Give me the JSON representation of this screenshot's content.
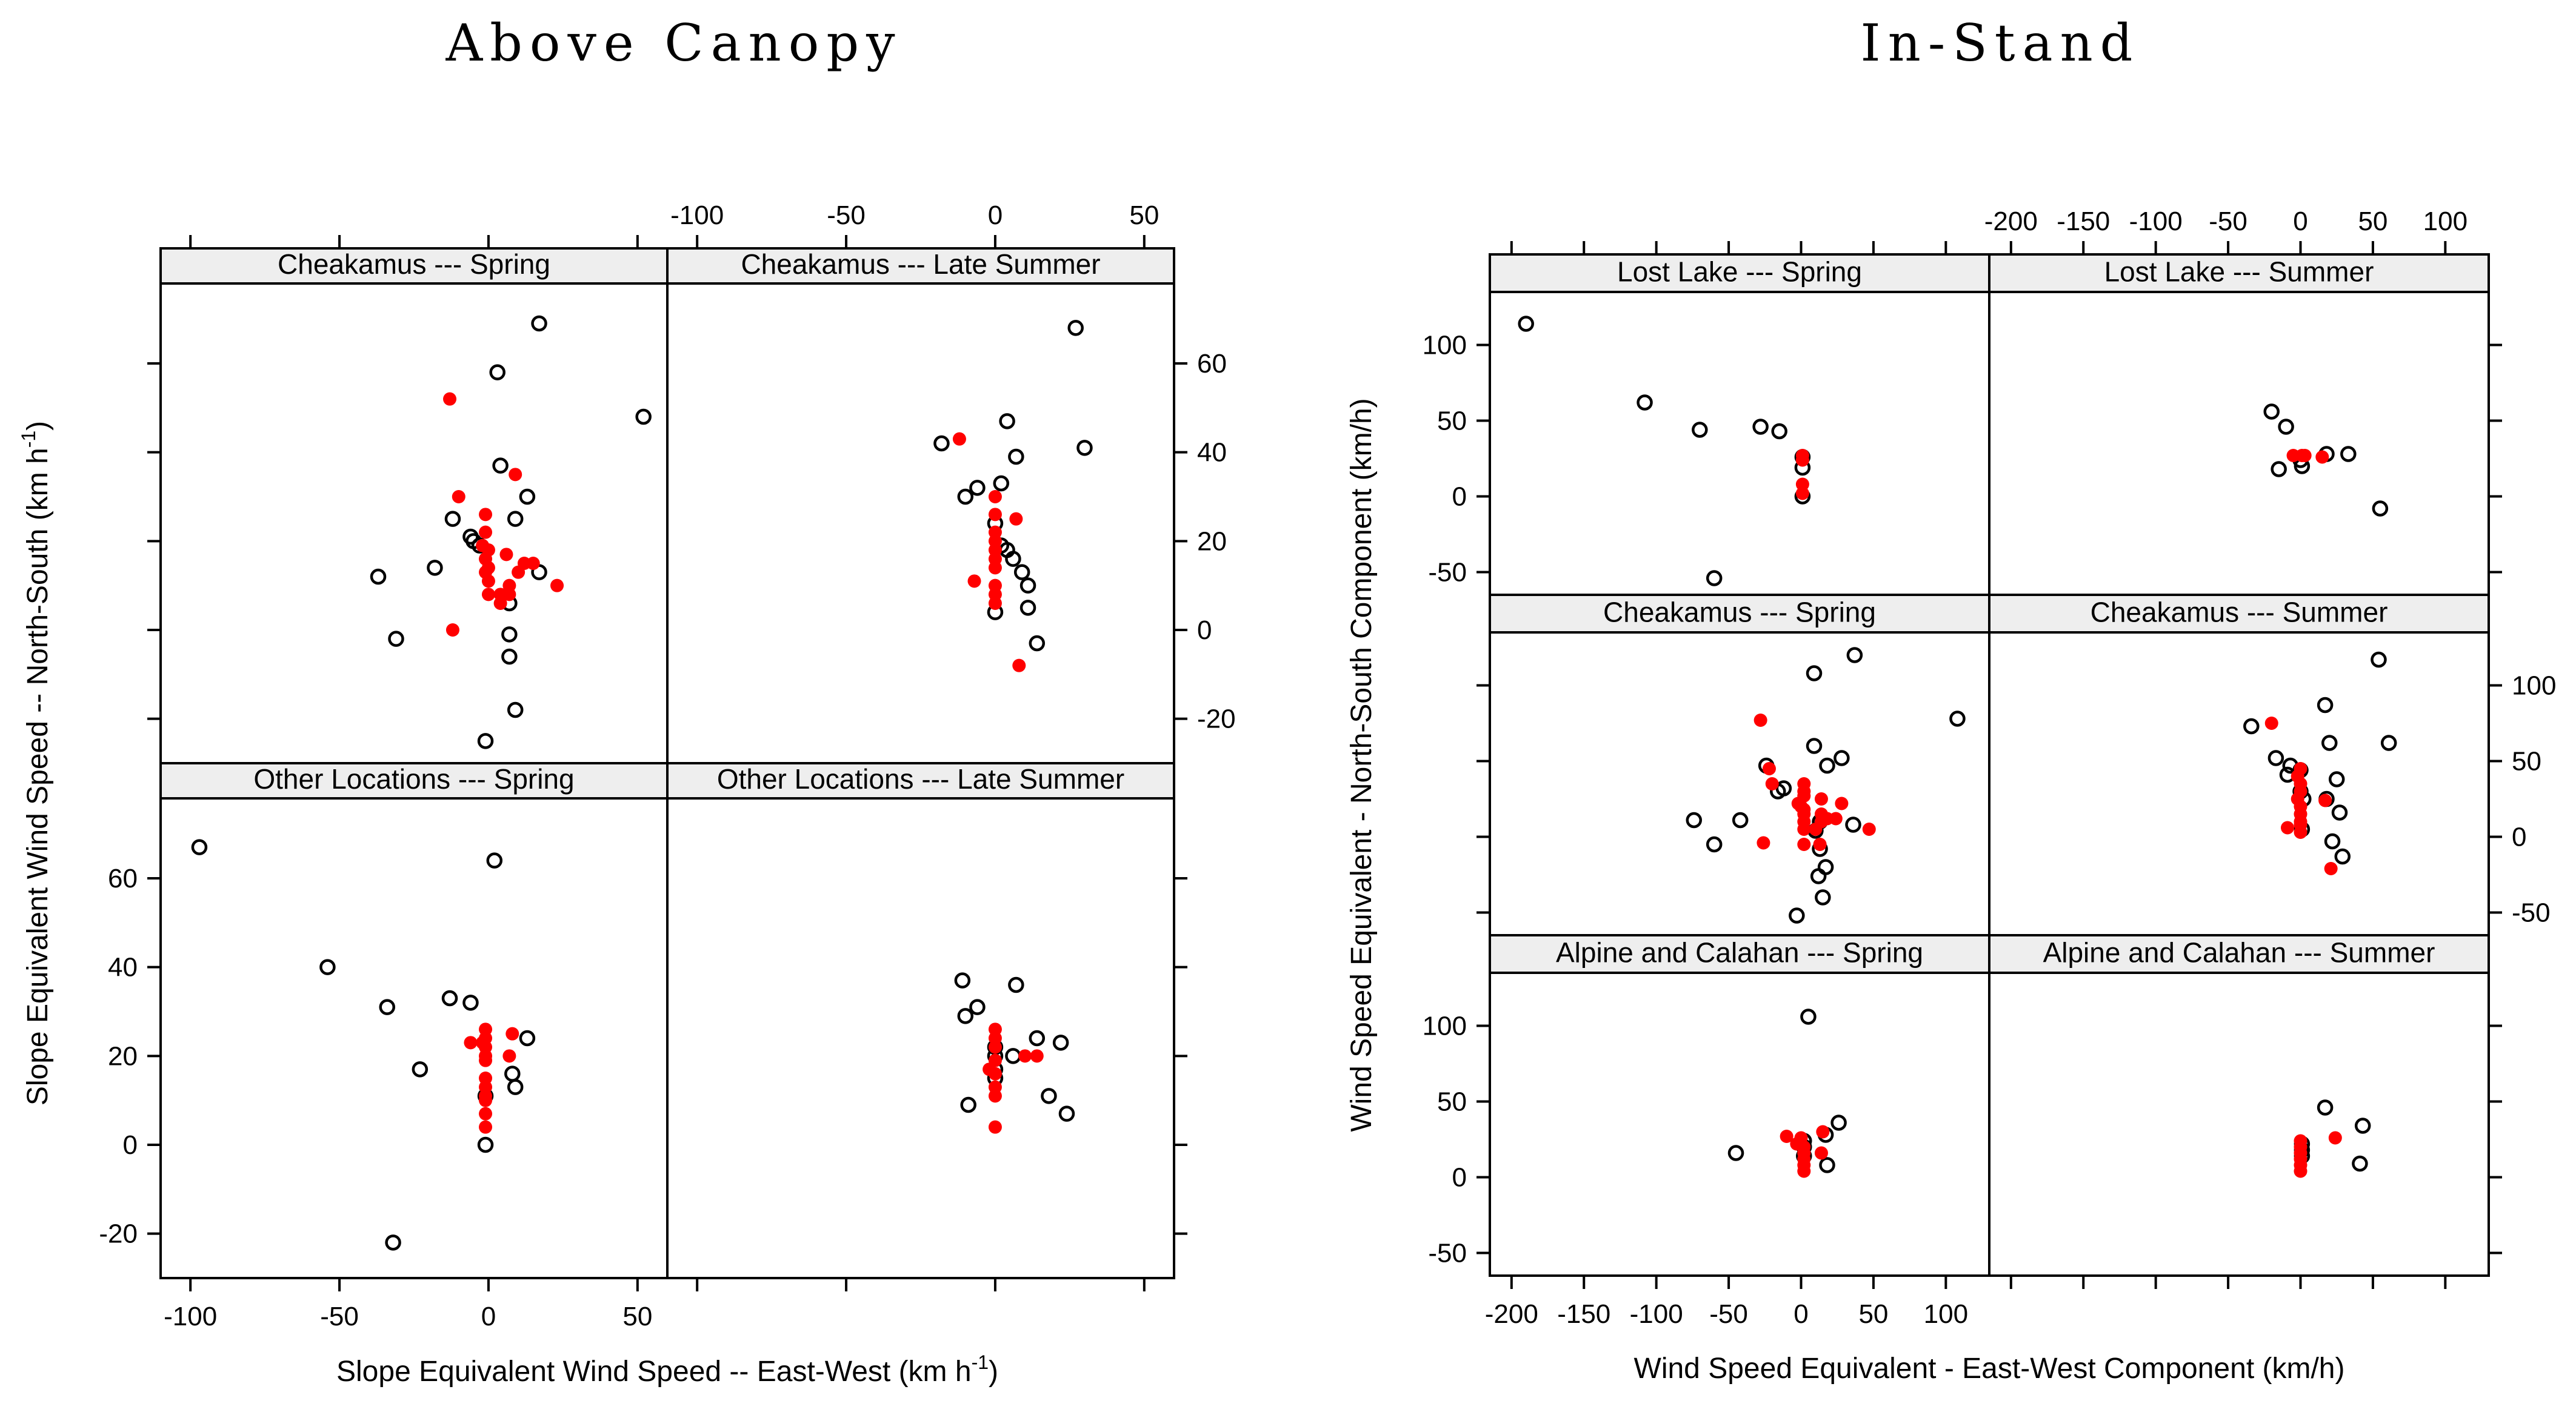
{
  "colors": {
    "black_point": "#000000",
    "red_point": "#ff0000",
    "strip_bg": "#eeeeee",
    "frame": "#000000"
  },
  "chart_data": [
    {
      "type": "scatter",
      "group_title": "Above Canopy",
      "xlabel": "Slope Equivalent Wind Speed -- East-West",
      "xlabel_unit": "(km  h",
      "xlabel_sup": "-1",
      "xlabel_close": ")",
      "ylabel": "Slope Equivalent Wind Speed -- North-South",
      "ylabel_unit": "(km  h",
      "ylabel_sup": "-1",
      "ylabel_close": ")",
      "xlim": [
        -110,
        60
      ],
      "ylim": [
        -30,
        78
      ],
      "xticks": [
        -100,
        -50,
        0,
        50
      ],
      "yticks": [
        -20,
        0,
        20,
        40,
        60
      ],
      "xtick_labels": [
        "-100",
        "-50",
        "0",
        "50"
      ],
      "ytick_labels": [
        "-20",
        "0",
        "20",
        "40",
        "60"
      ],
      "grid": false,
      "panels": [
        {
          "label": "Cheakamus --- Spring",
          "black": [
            [
              17,
              69
            ],
            [
              3,
              58
            ],
            [
              52,
              48
            ],
            [
              -18,
              14
            ],
            [
              4,
              37
            ],
            [
              13,
              30
            ],
            [
              -12,
              25
            ],
            [
              9,
              25
            ],
            [
              -6,
              21
            ],
            [
              -5,
              20
            ],
            [
              -3,
              19
            ],
            [
              -37,
              12
            ],
            [
              -31,
              -2
            ],
            [
              7,
              6
            ],
            [
              17,
              13
            ],
            [
              7,
              -1
            ],
            [
              7,
              -6
            ],
            [
              9,
              -18
            ],
            [
              -1,
              -25
            ]
          ],
          "red": [
            [
              -13,
              52
            ],
            [
              -10,
              30
            ],
            [
              9,
              35
            ],
            [
              -1,
              26
            ],
            [
              -1,
              22
            ],
            [
              -2,
              19
            ],
            [
              0,
              18
            ],
            [
              -1,
              16
            ],
            [
              6,
              17
            ],
            [
              12,
              15
            ],
            [
              15,
              15
            ],
            [
              0,
              14
            ],
            [
              -1,
              13
            ],
            [
              10,
              13
            ],
            [
              0,
              11
            ],
            [
              7,
              10
            ],
            [
              23,
              10
            ],
            [
              0,
              8
            ],
            [
              4,
              8
            ],
            [
              7,
              8
            ],
            [
              4,
              6
            ],
            [
              -12,
              0
            ]
          ]
        },
        {
          "label": "Cheakamus --- Late Summer",
          "black": [
            [
              27,
              68
            ],
            [
              4,
              47
            ],
            [
              -18,
              42
            ],
            [
              30,
              41
            ],
            [
              7,
              39
            ],
            [
              2,
              33
            ],
            [
              -6,
              32
            ],
            [
              -10,
              30
            ],
            [
              0,
              24
            ],
            [
              2,
              19
            ],
            [
              4,
              18
            ],
            [
              6,
              16
            ],
            [
              9,
              13
            ],
            [
              11,
              10
            ],
            [
              11,
              5
            ],
            [
              0,
              4
            ],
            [
              14,
              -3
            ]
          ],
          "red": [
            [
              -12,
              43
            ],
            [
              0,
              30
            ],
            [
              0,
              26
            ],
            [
              7,
              25
            ],
            [
              0,
              22
            ],
            [
              0,
              20
            ],
            [
              0,
              18
            ],
            [
              0,
              16
            ],
            [
              0,
              14
            ],
            [
              -7,
              11
            ],
            [
              0,
              10
            ],
            [
              0,
              8
            ],
            [
              0,
              6
            ],
            [
              8,
              -8
            ]
          ]
        },
        {
          "label": "Other Locations --- Spring",
          "black": [
            [
              -97,
              67
            ],
            [
              2,
              64
            ],
            [
              -54,
              40
            ],
            [
              -34,
              31
            ],
            [
              -13,
              33
            ],
            [
              -6,
              32
            ],
            [
              13,
              24
            ],
            [
              -23,
              17
            ],
            [
              8,
              16
            ],
            [
              9,
              13
            ],
            [
              -1,
              11
            ],
            [
              -1,
              0
            ],
            [
              -32,
              -22
            ]
          ],
          "red": [
            [
              -1,
              26
            ],
            [
              -1,
              24
            ],
            [
              8,
              25
            ],
            [
              -2,
              23
            ],
            [
              -6,
              23
            ],
            [
              -1,
              22
            ],
            [
              -1,
              20
            ],
            [
              7,
              20
            ],
            [
              -1,
              19
            ],
            [
              -1,
              15
            ],
            [
              -1,
              13
            ],
            [
              -1,
              11
            ],
            [
              -1,
              10
            ],
            [
              -1,
              7
            ],
            [
              -1,
              4
            ]
          ]
        },
        {
          "label": "Other Locations --- Late Summer",
          "black": [
            [
              -11,
              37
            ],
            [
              7,
              36
            ],
            [
              -6,
              31
            ],
            [
              -10,
              29
            ],
            [
              14,
              24
            ],
            [
              22,
              23
            ],
            [
              0,
              22
            ],
            [
              0,
              20
            ],
            [
              6,
              20
            ],
            [
              0,
              17
            ],
            [
              0,
              15
            ],
            [
              18,
              11
            ],
            [
              24,
              7
            ],
            [
              -9,
              9
            ]
          ],
          "red": [
            [
              0,
              26
            ],
            [
              0,
              24
            ],
            [
              0,
              22
            ],
            [
              10,
              20
            ],
            [
              14,
              20
            ],
            [
              0,
              19
            ],
            [
              -2,
              17
            ],
            [
              0,
              16
            ],
            [
              0,
              13
            ],
            [
              0,
              11
            ],
            [
              0,
              4
            ]
          ]
        }
      ]
    },
    {
      "type": "scatter",
      "group_title": "In-Stand",
      "xlabel": "Wind Speed Equivalent - East-West Component (km/h)",
      "ylabel": "Wind Speed Equivalent - North-South Component (km/h)",
      "xlim": [
        -215,
        130
      ],
      "ylim": [
        -65,
        135
      ],
      "xticks": [
        -200,
        -150,
        -100,
        -50,
        0,
        50,
        100
      ],
      "yticks": [
        -50,
        0,
        50,
        100
      ],
      "xtick_labels": [
        "-200",
        "-150",
        "-100",
        "-50",
        "0",
        "50",
        "100"
      ],
      "ytick_labels": [
        "-50",
        "0",
        "50",
        "100"
      ],
      "grid": false,
      "panels": [
        {
          "label": "Lost Lake --- Spring",
          "black": [
            [
              -190,
              114
            ],
            [
              -108,
              62
            ],
            [
              -70,
              44
            ],
            [
              -28,
              46
            ],
            [
              -15,
              43
            ],
            [
              1,
              26
            ],
            [
              1,
              19
            ],
            [
              1,
              0
            ],
            [
              -60,
              -54
            ]
          ],
          "red": [
            [
              1,
              27
            ],
            [
              1,
              24
            ],
            [
              1,
              8
            ],
            [
              1,
              2
            ]
          ]
        },
        {
          "label": "Lost Lake --- Summer",
          "black": [
            [
              -20,
              56
            ],
            [
              -10,
              46
            ],
            [
              -15,
              18
            ],
            [
              1,
              20
            ],
            [
              0,
              24
            ],
            [
              18,
              28
            ],
            [
              33,
              28
            ],
            [
              55,
              -8
            ]
          ],
          "red": [
            [
              -5,
              27
            ],
            [
              3,
              27
            ],
            [
              15,
              26
            ],
            [
              1,
              27
            ]
          ]
        },
        {
          "label": "Cheakamus --- Spring",
          "black": [
            [
              37,
              120
            ],
            [
              9,
              108
            ],
            [
              108,
              78
            ],
            [
              9,
              60
            ],
            [
              28,
              52
            ],
            [
              18,
              47
            ],
            [
              -24,
              47
            ],
            [
              -12,
              32
            ],
            [
              -16,
              30
            ],
            [
              -74,
              11
            ],
            [
              -42,
              11
            ],
            [
              -60,
              -5
            ],
            [
              36,
              8
            ],
            [
              13,
              10
            ],
            [
              10,
              4
            ],
            [
              13,
              -8
            ],
            [
              17,
              -20
            ],
            [
              12,
              -26
            ],
            [
              15,
              -40
            ],
            [
              -3,
              -52
            ]
          ],
          "red": [
            [
              -28,
              77
            ],
            [
              -22,
              45
            ],
            [
              -20,
              35
            ],
            [
              2,
              35
            ],
            [
              2,
              30
            ],
            [
              2,
              27
            ],
            [
              -2,
              22
            ],
            [
              14,
              25
            ],
            [
              28,
              22
            ],
            [
              0,
              20
            ],
            [
              2,
              18
            ],
            [
              2,
              15
            ],
            [
              14,
              15
            ],
            [
              18,
              12
            ],
            [
              24,
              12
            ],
            [
              2,
              10
            ],
            [
              14,
              10
            ],
            [
              47,
              5
            ],
            [
              2,
              5
            ],
            [
              10,
              5
            ],
            [
              -26,
              -4
            ],
            [
              2,
              -5
            ],
            [
              13,
              -5
            ]
          ]
        },
        {
          "label": "Cheakamus --- Summer",
          "black": [
            [
              54,
              117
            ],
            [
              17,
              87
            ],
            [
              -34,
              73
            ],
            [
              20,
              62
            ],
            [
              61,
              62
            ],
            [
              -17,
              52
            ],
            [
              0,
              44
            ],
            [
              -7,
              47
            ],
            [
              -9,
              41
            ],
            [
              25,
              38
            ],
            [
              0,
              30
            ],
            [
              2,
              25
            ],
            [
              18,
              25
            ],
            [
              27,
              16
            ],
            [
              1,
              5
            ],
            [
              22,
              -3
            ],
            [
              29,
              -13
            ]
          ],
          "red": [
            [
              -20,
              75
            ],
            [
              0,
              45
            ],
            [
              -2,
              40
            ],
            [
              0,
              35
            ],
            [
              0,
              30
            ],
            [
              -2,
              25
            ],
            [
              17,
              24
            ],
            [
              0,
              20
            ],
            [
              0,
              15
            ],
            [
              0,
              10
            ],
            [
              0,
              8
            ],
            [
              -9,
              6
            ],
            [
              0,
              3
            ],
            [
              21,
              -21
            ]
          ]
        },
        {
          "label": "Alpine and Calahan --- Spring",
          "black": [
            [
              5,
              106
            ],
            [
              26,
              36
            ],
            [
              17,
              28
            ],
            [
              -45,
              16
            ],
            [
              18,
              8
            ],
            [
              2,
              24
            ],
            [
              2,
              20
            ],
            [
              2,
              14
            ]
          ],
          "red": [
            [
              -10,
              27
            ],
            [
              -3,
              22
            ],
            [
              15,
              30
            ],
            [
              0,
              26
            ],
            [
              2,
              20
            ],
            [
              2,
              16
            ],
            [
              2,
              12
            ],
            [
              2,
              8
            ],
            [
              2,
              4
            ],
            [
              14,
              16
            ]
          ]
        },
        {
          "label": "Alpine and Calahan --- Summer",
          "black": [
            [
              17,
              46
            ],
            [
              43,
              34
            ],
            [
              41,
              9
            ],
            [
              1,
              22
            ],
            [
              1,
              18
            ],
            [
              1,
              14
            ]
          ],
          "red": [
            [
              24,
              26
            ],
            [
              0,
              24
            ],
            [
              0,
              20
            ],
            [
              0,
              16
            ],
            [
              0,
              12
            ],
            [
              0,
              8
            ],
            [
              0,
              4
            ]
          ]
        }
      ]
    }
  ]
}
